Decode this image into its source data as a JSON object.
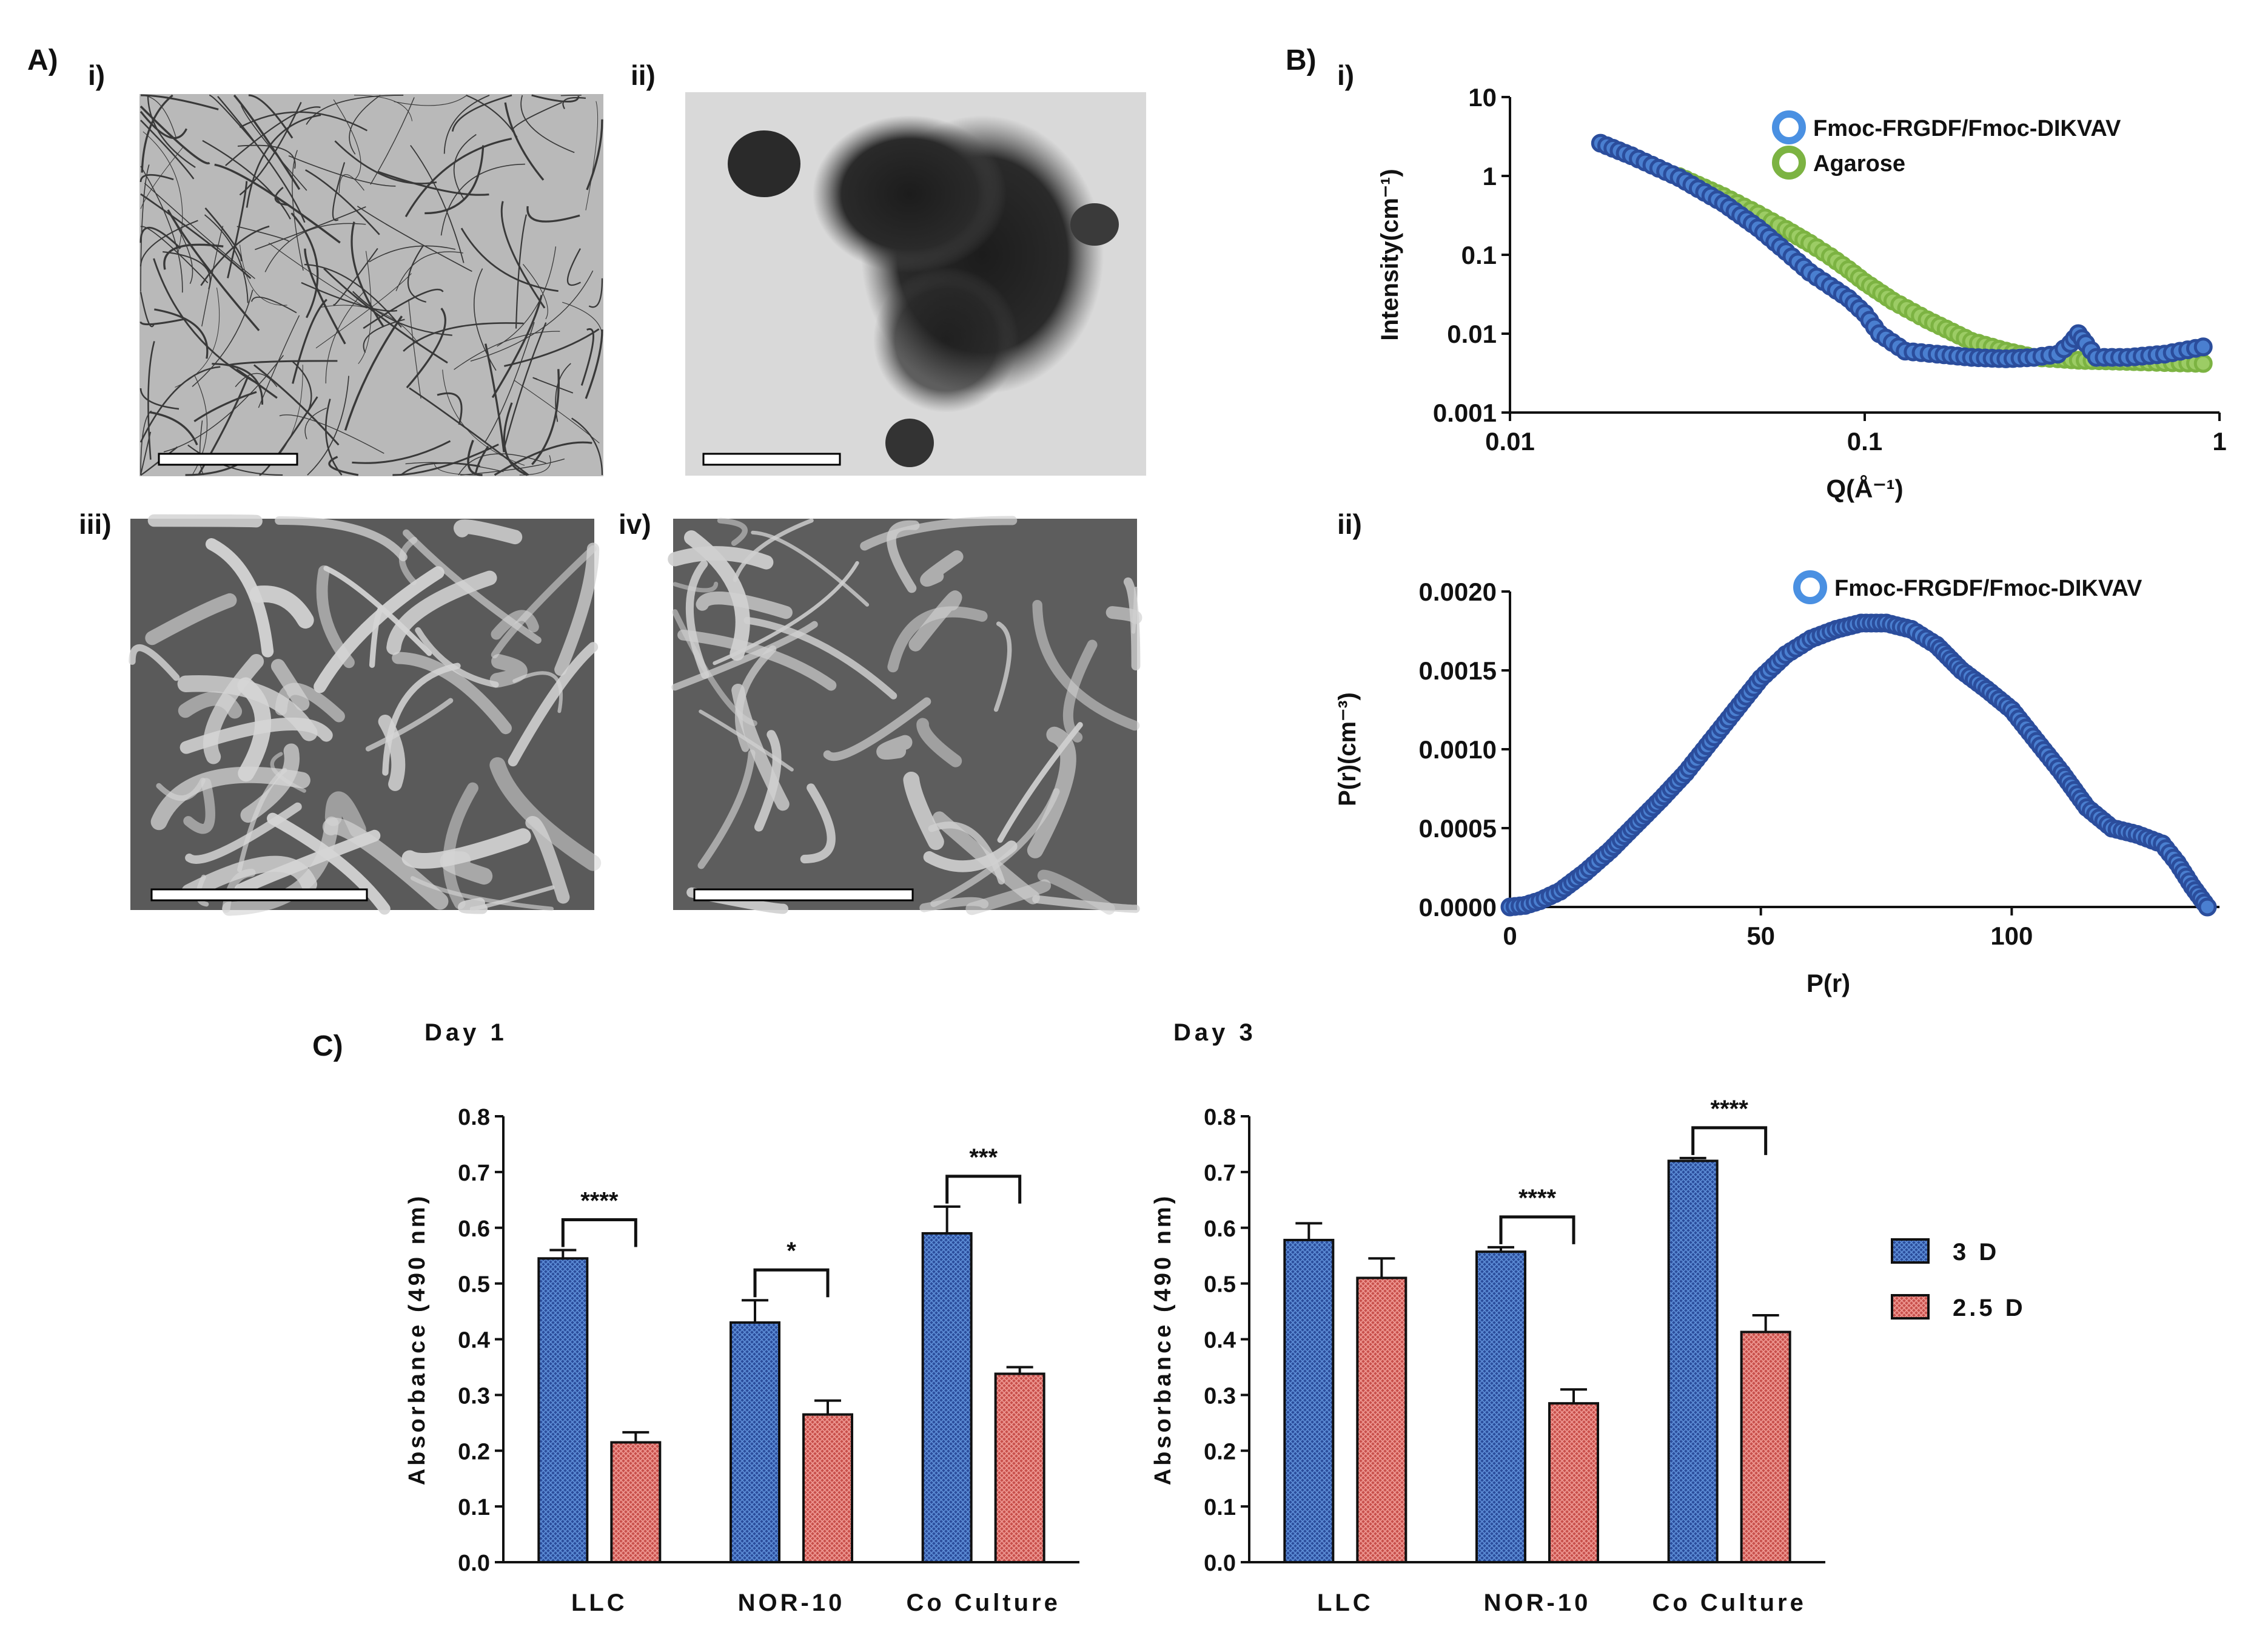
{
  "panel_labels": {
    "A": "A)",
    "B": "B)",
    "C": "C)",
    "Ai": "i)",
    "Aii": "ii)",
    "Aiii": "iii)",
    "Aiv": "iv)",
    "Bi": "i)",
    "Bii": "ii)"
  },
  "colors": {
    "blue": "#2b4d9c",
    "blue_light": "#4a7fd0",
    "green": "#7cb342",
    "red": "#c8504b",
    "red_light": "#e58a84",
    "axis": "#111111"
  },
  "micrographs": {
    "Ai": {
      "description": "TEM fibrous network",
      "scale_bar": true
    },
    "Aii": {
      "description": "Agarose aggregate",
      "scale_bar": true
    },
    "Aiii": {
      "description": "SEM fibrous scaffold",
      "scale_bar": true
    },
    "Aiv": {
      "description": "SEM fibrous scaffold",
      "scale_bar": true
    }
  },
  "chart_data": [
    {
      "id": "B-i",
      "type": "scatter",
      "xscale": "log",
      "yscale": "log",
      "xlabel": "Q(Å⁻¹)",
      "ylabel": "Intensity(cm⁻¹)",
      "xlim": [
        0.01,
        1
      ],
      "ylim": [
        0.001,
        10
      ],
      "xticks": [
        "0.01",
        "0.1",
        "1"
      ],
      "yticks": [
        "0.001",
        "0.01",
        "0.1",
        "1",
        "10"
      ],
      "legend_position": "top-right",
      "series": [
        {
          "name": "Fmoc-FRGDF/Fmoc-DIKVAV",
          "x": [
            0.018,
            0.022,
            0.03,
            0.04,
            0.05,
            0.06,
            0.07,
            0.08,
            0.09,
            0.1,
            0.11,
            0.13,
            0.16,
            0.2,
            0.25,
            0.3,
            0.35,
            0.38,
            0.4,
            0.42,
            0.45,
            0.55,
            0.7,
            0.9
          ],
          "y": [
            2.6,
            1.8,
            0.95,
            0.45,
            0.22,
            0.11,
            0.06,
            0.04,
            0.028,
            0.018,
            0.01,
            0.006,
            0.0055,
            0.005,
            0.0048,
            0.005,
            0.0055,
            0.0075,
            0.01,
            0.0075,
            0.005,
            0.005,
            0.0055,
            0.0068
          ]
        },
        {
          "name": "Agarose",
          "x": [
            0.03,
            0.04,
            0.05,
            0.06,
            0.07,
            0.08,
            0.09,
            0.1,
            0.12,
            0.15,
            0.2,
            0.25,
            0.3,
            0.35,
            0.4,
            0.5,
            0.6,
            0.7,
            0.9
          ],
          "y": [
            0.98,
            0.55,
            0.33,
            0.21,
            0.14,
            0.095,
            0.065,
            0.045,
            0.026,
            0.015,
            0.008,
            0.006,
            0.005,
            0.0048,
            0.0046,
            0.0045,
            0.0044,
            0.0043,
            0.0042
          ]
        }
      ]
    },
    {
      "id": "B-ii",
      "type": "scatter",
      "xlabel": "P(r)",
      "ylabel": "P(r)(cm⁻³)",
      "xlim": [
        0,
        140
      ],
      "ylim": [
        0,
        0.002
      ],
      "xticks": [
        "0",
        "50",
        "100"
      ],
      "yticks": [
        "0.0000",
        "0.0005",
        "0.0010",
        "0.0015",
        "0.0020"
      ],
      "legend_position": "top-right",
      "series": [
        {
          "name": "Fmoc-FRGDF/Fmoc-DIKVAV",
          "x": [
            0,
            3,
            6,
            10,
            15,
            20,
            25,
            30,
            35,
            40,
            45,
            50,
            55,
            60,
            65,
            70,
            75,
            80,
            85,
            90,
            95,
            100,
            105,
            110,
            115,
            120,
            125,
            130,
            133,
            136,
            139
          ],
          "y": [
            0,
            1e-05,
            4e-05,
            0.0001,
            0.00022,
            0.00036,
            0.00052,
            0.00068,
            0.00085,
            0.00105,
            0.00125,
            0.00145,
            0.0016,
            0.0017,
            0.00176,
            0.0018,
            0.0018,
            0.00176,
            0.00166,
            0.0015,
            0.00138,
            0.00125,
            0.00105,
            0.00085,
            0.00063,
            0.0005,
            0.00046,
            0.0004,
            0.00028,
            0.00013,
            0.0
          ]
        }
      ]
    },
    {
      "id": "C-day1",
      "type": "bar",
      "title": "Day 1",
      "ylabel": "Absorbance (490 nm)",
      "ylim": [
        0,
        0.8
      ],
      "yticks": [
        "0.0",
        "0.1",
        "0.2",
        "0.3",
        "0.4",
        "0.5",
        "0.6",
        "0.7",
        "0.8"
      ],
      "categories": [
        "LLC",
        "NOR-10",
        "Co Culture"
      ],
      "series": [
        {
          "name": "3 D",
          "values": [
            0.545,
            0.43,
            0.59
          ],
          "errors": [
            0.015,
            0.04,
            0.048
          ]
        },
        {
          "name": "2.5 D",
          "values": [
            0.215,
            0.265,
            0.338
          ],
          "errors": [
            0.018,
            0.025,
            0.012
          ]
        }
      ],
      "significance": [
        "****",
        "*",
        "***"
      ]
    },
    {
      "id": "C-day3",
      "type": "bar",
      "title": "Day 3",
      "ylabel": "Absorbance (490 nm)",
      "ylim": [
        0,
        0.8
      ],
      "yticks": [
        "0.0",
        "0.1",
        "0.2",
        "0.3",
        "0.4",
        "0.5",
        "0.6",
        "0.7",
        "0.8"
      ],
      "categories": [
        "LLC",
        "NOR-10",
        "Co Culture"
      ],
      "series": [
        {
          "name": "3 D",
          "values": [
            0.578,
            0.557,
            0.72
          ],
          "errors": [
            0.03,
            0.008,
            0.005
          ]
        },
        {
          "name": "2.5 D",
          "values": [
            0.51,
            0.285,
            0.413
          ],
          "errors": [
            0.035,
            0.025,
            0.03
          ]
        }
      ],
      "significance": [
        "",
        "****",
        "****"
      ],
      "legend": [
        "3 D",
        "2.5 D"
      ]
    }
  ]
}
